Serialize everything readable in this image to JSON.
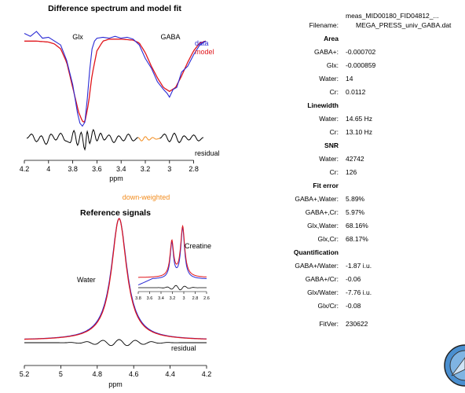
{
  "chart_data": [
    {
      "type": "line",
      "title": "Difference spectrum and model fit",
      "xlabel": "ppm",
      "xlim": [
        4.2,
        2.7
      ],
      "x_ticks": [
        "4.2",
        "4",
        "3.8",
        "3.6",
        "3.4",
        "3.2",
        "3",
        "2.8"
      ],
      "x_tick_values": [
        4.2,
        4.0,
        3.8,
        3.6,
        3.4,
        3.2,
        3.0,
        2.8
      ],
      "peak_labels": [
        "Glx",
        "GABA"
      ],
      "series": [
        {
          "name": "data",
          "color": "#2a2ad4",
          "x": [
            4.2,
            4.15,
            4.1,
            4.05,
            4.0,
            3.95,
            3.9,
            3.85,
            3.8,
            3.78,
            3.76,
            3.74,
            3.72,
            3.7,
            3.68,
            3.66,
            3.64,
            3.62,
            3.6,
            3.55,
            3.5,
            3.45,
            3.4,
            3.35,
            3.3,
            3.25,
            3.2,
            3.15,
            3.1,
            3.05,
            3.02,
            3.0,
            2.97,
            2.94,
            2.9,
            2.85,
            2.8,
            2.75,
            2.7
          ],
          "y": [
            0.98,
            0.95,
            1.0,
            0.93,
            0.94,
            0.9,
            0.86,
            0.7,
            0.45,
            0.3,
            0.15,
            0.05,
            0.02,
            0.06,
            0.3,
            0.6,
            0.82,
            0.9,
            0.93,
            0.94,
            0.93,
            0.95,
            0.93,
            0.94,
            0.92,
            0.86,
            0.72,
            0.62,
            0.48,
            0.4,
            0.36,
            0.32,
            0.4,
            0.42,
            0.58,
            0.64,
            0.76,
            0.86,
            0.9
          ]
        },
        {
          "name": "model",
          "color": "#e0151b",
          "x": [
            4.2,
            4.1,
            4.0,
            3.95,
            3.9,
            3.85,
            3.8,
            3.75,
            3.72,
            3.7,
            3.67,
            3.64,
            3.6,
            3.55,
            3.5,
            3.4,
            3.3,
            3.25,
            3.2,
            3.15,
            3.1,
            3.05,
            3.0,
            2.95,
            2.9,
            2.85,
            2.8,
            2.75,
            2.7
          ],
          "y": [
            0.9,
            0.9,
            0.89,
            0.87,
            0.82,
            0.68,
            0.42,
            0.16,
            0.07,
            0.06,
            0.25,
            0.55,
            0.8,
            0.9,
            0.92,
            0.92,
            0.91,
            0.88,
            0.78,
            0.64,
            0.52,
            0.42,
            0.38,
            0.42,
            0.54,
            0.68,
            0.8,
            0.88,
            0.9
          ]
        },
        {
          "name": "residual",
          "color": "#000000",
          "x": [
            4.18,
            4.14,
            4.1,
            4.06,
            4.02,
            3.98,
            3.94,
            3.9,
            3.86,
            3.82,
            3.79,
            3.76,
            3.73,
            3.7,
            3.68,
            3.66,
            3.63,
            3.6,
            3.57,
            3.54,
            3.5,
            3.46,
            3.42,
            3.38,
            3.34,
            3.3,
            3.26
          ],
          "y": [
            0.0,
            0.5,
            -0.4,
            0.3,
            -0.7,
            0.5,
            -0.2,
            0.6,
            -0.3,
            -0.5,
            0.9,
            -0.8,
            0.7,
            -1.3,
            0.8,
            -0.6,
            1.0,
            -0.3,
            0.6,
            -0.2,
            0.4,
            -0.5,
            0.3,
            -0.3,
            0.5,
            -0.3,
            0.1
          ]
        },
        {
          "name": "residual (down-weighted)",
          "color": "#f28c1e",
          "x": [
            3.26,
            3.23,
            3.2,
            3.17,
            3.14,
            3.11,
            3.08
          ],
          "y": [
            0.1,
            -0.3,
            0.2,
            -0.2,
            0.1,
            -0.1,
            0.0
          ]
        },
        {
          "name": "residual tail",
          "color": "#000000",
          "x": [
            3.08,
            3.04,
            3.0,
            2.96,
            2.92,
            2.88,
            2.84,
            2.8,
            2.76,
            2.72
          ],
          "y": [
            0.0,
            0.5,
            -0.4,
            0.6,
            -0.5,
            0.3,
            -0.2,
            0.4,
            -0.3,
            0.1
          ]
        }
      ],
      "legend": [
        "data",
        "model",
        "residual"
      ],
      "annotation": "down-weighted"
    },
    {
      "type": "line",
      "title": "Reference signals",
      "xlabel": "ppm",
      "xlim": [
        5.2,
        4.2
      ],
      "x_ticks": [
        "5.2",
        "5",
        "4.8",
        "4.6",
        "4.4",
        "4.2"
      ],
      "x_tick_values": [
        5.2,
        5.0,
        4.8,
        4.6,
        4.4,
        4.2
      ],
      "peak_labels": [
        "Water"
      ],
      "legend": [
        "residual"
      ],
      "series": [
        {
          "name": "data",
          "color": "#2a2ad4",
          "center": 4.68,
          "width": 0.052,
          "amplitude": 1.0
        },
        {
          "name": "model",
          "color": "#e0151b",
          "center": 4.68,
          "width": 0.05,
          "amplitude": 1.0
        }
      ]
    },
    {
      "type": "line",
      "title": "",
      "inset": true,
      "xlim": [
        3.8,
        2.6
      ],
      "x_ticks": [
        "3.8",
        "3.6",
        "3.4",
        "3.2",
        "3",
        "2.8",
        "2.6"
      ],
      "x_tick_values": [
        3.8,
        3.6,
        3.4,
        3.2,
        3.0,
        2.8,
        2.6
      ],
      "peak_labels": [
        "Creatine"
      ],
      "peaks": [
        {
          "center": 3.21,
          "amplitude": 0.7,
          "width": 0.035
        },
        {
          "center": 3.02,
          "amplitude": 1.0,
          "width": 0.04
        }
      ]
    }
  ],
  "info": {
    "filename_label": "Filename:",
    "filename_line1": "meas_MID00180_FID04812_...",
    "filename_line2": "MEGA_PRESS_univ_GABA.dat",
    "sections": [
      {
        "header": "Area",
        "rows": [
          {
            "label": "GABA+:",
            "value": "-0.000702"
          },
          {
            "label": "Glx:",
            "value": "-0.000859"
          },
          {
            "label": "Water:",
            "value": "14"
          },
          {
            "label": "Cr:",
            "value": "0.0112"
          }
        ]
      },
      {
        "header": "Linewidth",
        "rows": [
          {
            "label": "Water:",
            "value": "14.65 Hz"
          },
          {
            "label": "Cr:",
            "value": "13.10 Hz"
          }
        ]
      },
      {
        "header": "SNR",
        "rows": [
          {
            "label": "Water:",
            "value": "42742"
          },
          {
            "label": "Cr:",
            "value": "126"
          }
        ]
      },
      {
        "header": "Fit error",
        "rows": [
          {
            "label": "GABA+,Water:",
            "value": "5.89%"
          },
          {
            "label": "GABA+,Cr:",
            "value": "5.97%"
          },
          {
            "label": "Glx,Water:",
            "value": "68.16%"
          },
          {
            "label": "Glx,Cr:",
            "value": "68.17%"
          }
        ]
      },
      {
        "header": "Quantification",
        "rows": [
          {
            "label": "GABA+/Water:",
            "value": "-1.87 i.u."
          },
          {
            "label": "GABA+/Cr:",
            "value": "-0.06"
          },
          {
            "label": "Glx/Water:",
            "value": "-7.76 i.u."
          },
          {
            "label": "Glx/Cr:",
            "value": "-0.08"
          }
        ]
      }
    ],
    "fitver_label": "FitVer:",
    "fitver_value": "230622"
  },
  "logo": {
    "name": "magnifier-logo",
    "color": "#4a8fd0"
  }
}
